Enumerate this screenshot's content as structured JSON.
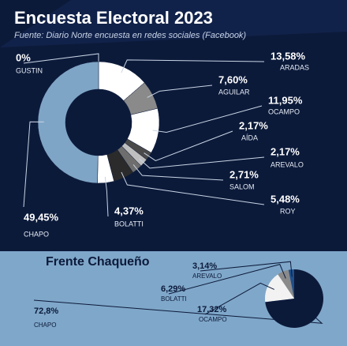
{
  "chart_data": [
    {
      "type": "donut",
      "title": "Encuesta Electoral 2023",
      "subtitle": "Fuente: Diario Norte encuesta en redes sociales (Facebook)",
      "categories": [
        "GUSTIN",
        "ARADAS",
        "AGUILAR",
        "OCAMPO",
        "AÍDA",
        "AREVALO",
        "SALOM",
        "ROY",
        "BOLATTI",
        "CHAPO"
      ],
      "values": [
        0,
        13.58,
        7.6,
        11.95,
        2.17,
        2.17,
        2.71,
        5.48,
        4.37,
        49.45
      ],
      "value_labels": [
        "0%",
        "13,58%",
        "7,60%",
        "11,95%",
        "2,17%",
        "2,17%",
        "2,71%",
        "5,48%",
        "4,37%",
        "49,45%"
      ],
      "colors": [
        "#ffffff",
        "#ffffff",
        "#8a8a8a",
        "#ffffff",
        "#4a4a4a",
        "#bfbfbf",
        "#6e6e6e",
        "#2b2b2b",
        "#ffffff",
        "#7fa5c6"
      ]
    },
    {
      "type": "pie",
      "title": "Frente Chaqueño",
      "categories": [
        "AREVALO",
        "BOLATTI",
        "OCAMPO",
        "CHAPO"
      ],
      "values": [
        3.14,
        6.29,
        17.32,
        72.8
      ],
      "value_labels": [
        "3,14%",
        "6,29%",
        "17,32%",
        "72,8%"
      ],
      "colors": [
        "#1f4f8a",
        "#8a8a8a",
        "#f2f2f2",
        "#0c1a3a"
      ]
    }
  ]
}
